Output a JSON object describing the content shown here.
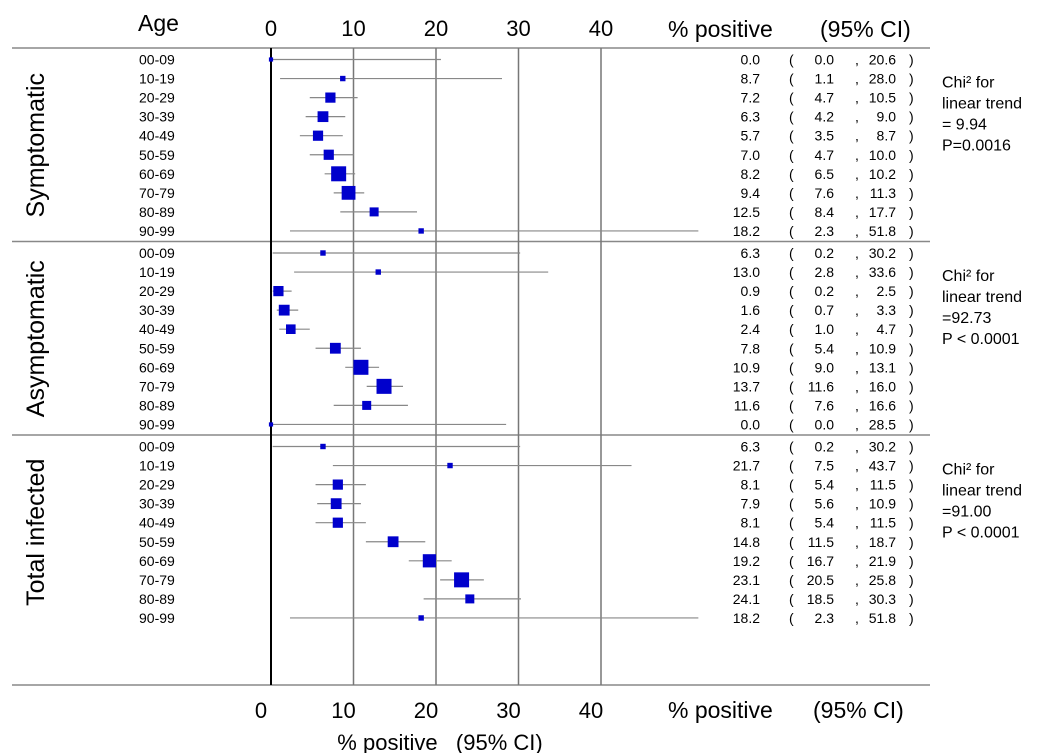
{
  "chart_data": {
    "type": "forest",
    "header": {
      "age": "Age",
      "pct": "% positive",
      "ci": "(95% CI)"
    },
    "x_ticks": [
      "0",
      "10",
      "20",
      "30",
      "40"
    ],
    "xlim": [
      0,
      40
    ],
    "xlabel": "% positive   (95% CI)",
    "groups": [
      {
        "name": "Symptomatic",
        "note": [
          "Chi² for",
          "linear trend",
          " = 9.94",
          "P=0.0016"
        ],
        "rows": [
          {
            "age": "00-09",
            "pct": 0.0,
            "lo": 0.0,
            "hi": 20.6,
            "pct_text": "0.0",
            "lo_text": "0.0",
            "hi_text": "20.6",
            "w": 0.1
          },
          {
            "age": "10-19",
            "pct": 8.7,
            "lo": 1.1,
            "hi": 28.0,
            "pct_text": "8.7",
            "lo_text": "1.1",
            "hi_text": "28.0",
            "w": 0.2
          },
          {
            "age": "20-29",
            "pct": 7.2,
            "lo": 4.7,
            "hi": 10.5,
            "pct_text": "7.2",
            "lo_text": "4.7",
            "hi_text": "10.5",
            "w": 0.6
          },
          {
            "age": "30-39",
            "pct": 6.3,
            "lo": 4.2,
            "hi": 9.0,
            "pct_text": "6.3",
            "lo_text": "4.2",
            "hi_text": "9.0",
            "w": 0.65
          },
          {
            "age": "40-49",
            "pct": 5.7,
            "lo": 3.5,
            "hi": 8.7,
            "pct_text": "5.7",
            "lo_text": "3.5",
            "hi_text": "8.7",
            "w": 0.6
          },
          {
            "age": "50-59",
            "pct": 7.0,
            "lo": 4.7,
            "hi": 10.0,
            "pct_text": "7.0",
            "lo_text": "4.7",
            "hi_text": "10.0",
            "w": 0.6
          },
          {
            "age": "60-69",
            "pct": 8.2,
            "lo": 6.5,
            "hi": 10.2,
            "pct_text": "8.2",
            "lo_text": "6.5",
            "hi_text": "10.2",
            "w": 1.0
          },
          {
            "age": "70-79",
            "pct": 9.4,
            "lo": 7.6,
            "hi": 11.3,
            "pct_text": "9.4",
            "lo_text": "7.6",
            "hi_text": "11.3",
            "w": 0.9
          },
          {
            "age": "80-89",
            "pct": 12.5,
            "lo": 8.4,
            "hi": 17.7,
            "pct_text": "12.5",
            "lo_text": "8.4",
            "hi_text": "17.7",
            "w": 0.5
          },
          {
            "age": "90-99",
            "pct": 18.2,
            "lo": 2.3,
            "hi": 51.8,
            "pct_text": "18.2",
            "lo_text": "2.3",
            "hi_text": "51.8",
            "w": 0.2
          }
        ]
      },
      {
        "name": "Asymptomatic",
        "note": [
          "Chi² for",
          "linear trend",
          "=92.73",
          "P < 0.0001"
        ],
        "rows": [
          {
            "age": "00-09",
            "pct": 6.3,
            "lo": 0.2,
            "hi": 30.2,
            "pct_text": "6.3",
            "lo_text": "0.2",
            "hi_text": "30.2",
            "w": 0.2
          },
          {
            "age": "10-19",
            "pct": 13.0,
            "lo": 2.8,
            "hi": 33.6,
            "pct_text": "13.0",
            "lo_text": "2.8",
            "hi_text": "33.6",
            "w": 0.2
          },
          {
            "age": "20-29",
            "pct": 0.9,
            "lo": 0.2,
            "hi": 2.5,
            "pct_text": "0.9",
            "lo_text": "0.2",
            "hi_text": "2.5",
            "w": 0.6
          },
          {
            "age": "30-39",
            "pct": 1.6,
            "lo": 0.7,
            "hi": 3.3,
            "pct_text": "1.6",
            "lo_text": "0.7",
            "hi_text": "3.3",
            "w": 0.65
          },
          {
            "age": "40-49",
            "pct": 2.4,
            "lo": 1.0,
            "hi": 4.7,
            "pct_text": "2.4",
            "lo_text": "1.0",
            "hi_text": "4.7",
            "w": 0.55
          },
          {
            "age": "50-59",
            "pct": 7.8,
            "lo": 5.4,
            "hi": 10.9,
            "pct_text": "7.8",
            "lo_text": "5.4",
            "hi_text": "10.9",
            "w": 0.65
          },
          {
            "age": "60-69",
            "pct": 10.9,
            "lo": 9.0,
            "hi": 13.1,
            "pct_text": "10.9",
            "lo_text": "9.0",
            "hi_text": "13.1",
            "w": 1.0
          },
          {
            "age": "70-79",
            "pct": 13.7,
            "lo": 11.6,
            "hi": 16.0,
            "pct_text": "13.7",
            "lo_text": "11.6",
            "hi_text": "16.0",
            "w": 1.0
          },
          {
            "age": "80-89",
            "pct": 11.6,
            "lo": 7.6,
            "hi": 16.6,
            "pct_text": "11.6",
            "lo_text": "7.6",
            "hi_text": "16.6",
            "w": 0.5
          },
          {
            "age": "90-99",
            "pct": 0.0,
            "lo": 0.0,
            "hi": 28.5,
            "pct_text": "0.0",
            "lo_text": "0.0",
            "hi_text": "28.5",
            "w": 0.1
          }
        ]
      },
      {
        "name": "Total infected",
        "note": [
          "Chi² for",
          "linear trend",
          "=91.00",
          "P < 0.0001"
        ],
        "rows": [
          {
            "age": "00-09",
            "pct": 6.3,
            "lo": 0.2,
            "hi": 30.2,
            "pct_text": "6.3",
            "lo_text": "0.2",
            "hi_text": "30.2",
            "w": 0.2
          },
          {
            "age": "10-19",
            "pct": 21.7,
            "lo": 7.5,
            "hi": 43.7,
            "pct_text": "21.7",
            "lo_text": "7.5",
            "hi_text": "43.7",
            "w": 0.2
          },
          {
            "age": "20-29",
            "pct": 8.1,
            "lo": 5.4,
            "hi": 11.5,
            "pct_text": "8.1",
            "lo_text": "5.4",
            "hi_text": "11.5",
            "w": 0.6
          },
          {
            "age": "30-39",
            "pct": 7.9,
            "lo": 5.6,
            "hi": 10.9,
            "pct_text": "7.9",
            "lo_text": "5.6",
            "hi_text": "10.9",
            "w": 0.65
          },
          {
            "age": "40-49",
            "pct": 8.1,
            "lo": 5.4,
            "hi": 11.5,
            "pct_text": "8.1",
            "lo_text": "5.4",
            "hi_text": "11.5",
            "w": 0.6
          },
          {
            "age": "50-59",
            "pct": 14.8,
            "lo": 11.5,
            "hi": 18.7,
            "pct_text": "14.8",
            "lo_text": "11.5",
            "hi_text": "18.7",
            "w": 0.65
          },
          {
            "age": "60-69",
            "pct": 19.2,
            "lo": 16.7,
            "hi": 21.9,
            "pct_text": "19.2",
            "lo_text": "16.7",
            "hi_text": "21.9",
            "w": 0.85
          },
          {
            "age": "70-79",
            "pct": 23.1,
            "lo": 20.5,
            "hi": 25.8,
            "pct_text": "23.1",
            "lo_text": "20.5",
            "hi_text": "25.8",
            "w": 1.0
          },
          {
            "age": "80-89",
            "pct": 24.1,
            "lo": 18.5,
            "hi": 30.3,
            "pct_text": "24.1",
            "lo_text": "18.5",
            "hi_text": "30.3",
            "w": 0.5
          },
          {
            "age": "90-99",
            "pct": 18.2,
            "lo": 2.3,
            "hi": 51.8,
            "pct_text": "18.2",
            "lo_text": "2.3",
            "hi_text": "51.8",
            "w": 0.2
          }
        ]
      }
    ],
    "colors": {
      "marker": "#0000cc",
      "ci_line": "#888888",
      "grid": "#777777",
      "zero_line": "#000000"
    }
  }
}
